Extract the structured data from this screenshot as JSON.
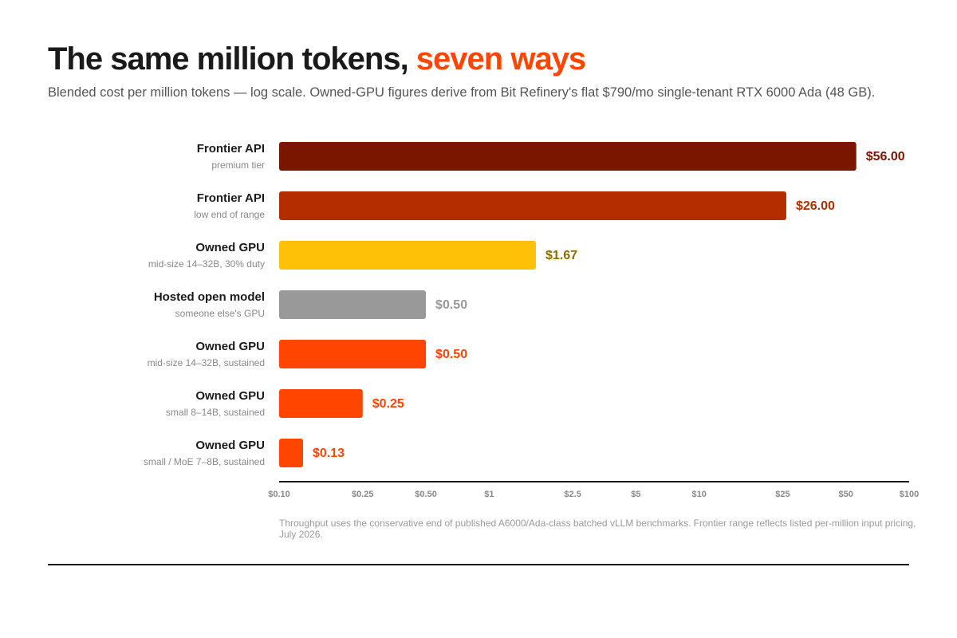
{
  "header": {
    "title_main": "The same million tokens, ",
    "title_accent": "seven ways",
    "subtitle": "Blended cost per million tokens — log scale. Owned-GPU figures derive from Bit Refinery's flat $790/mo single-tenant RTX 6000 Ada (48 GB)."
  },
  "chart_data": {
    "type": "bar",
    "orientation": "horizontal",
    "x_scale": "log",
    "xlim": [
      0.1,
      100
    ],
    "grid": false,
    "rows": [
      {
        "label": "Frontier API",
        "sublabel": "premium tier",
        "value": 56.0,
        "value_label": "$56.00",
        "color": "#7a1600",
        "label_color": "#7a1600"
      },
      {
        "label": "Frontier API",
        "sublabel": "low end of range",
        "value": 26.0,
        "value_label": "$26.00",
        "color": "#b32d00",
        "label_color": "#b32d00"
      },
      {
        "label": "Owned GPU",
        "sublabel": "mid-size 14–32B, 30% duty",
        "value": 1.67,
        "value_label": "$1.67",
        "color": "#ffc107",
        "label_color": "#8a6d00"
      },
      {
        "label": "Hosted open model",
        "sublabel": "someone else's GPU",
        "value": 0.5,
        "value_label": "$0.50",
        "color": "#999999",
        "label_color": "#999999"
      },
      {
        "label": "Owned GPU",
        "sublabel": "mid-size 14–32B, sustained",
        "value": 0.5,
        "value_label": "$0.50",
        "color": "#ff4500",
        "label_color": "#ff4500"
      },
      {
        "label": "Owned GPU",
        "sublabel": "small 8–14B, sustained",
        "value": 0.25,
        "value_label": "$0.25",
        "color": "#ff4500",
        "label_color": "#ff4500"
      },
      {
        "label": "Owned GPU",
        "sublabel": "small / MoE 7–8B, sustained",
        "value": 0.13,
        "value_label": "$0.13",
        "color": "#ff4500",
        "label_color": "#ff4500"
      }
    ],
    "ticks": [
      {
        "value": 0.1,
        "label": "$0.10"
      },
      {
        "value": 0.25,
        "label": "$0.25"
      },
      {
        "value": 0.5,
        "label": "$0.50"
      },
      {
        "value": 1,
        "label": "$1"
      },
      {
        "value": 2.5,
        "label": "$2.5"
      },
      {
        "value": 5,
        "label": "$5"
      },
      {
        "value": 10,
        "label": "$10"
      },
      {
        "value": 25,
        "label": "$25"
      },
      {
        "value": 50,
        "label": "$50"
      },
      {
        "value": 100,
        "label": "$100"
      }
    ]
  },
  "footer": {
    "note": "Throughput uses the conservative end of published A6000/Ada-class batched vLLM benchmarks. Frontier range reflects listed per-million input pricing, July 2026."
  }
}
